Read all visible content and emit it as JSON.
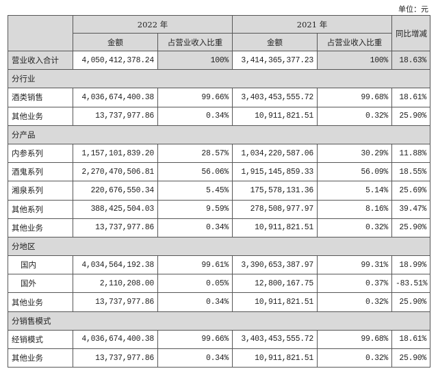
{
  "unit": "单位：元",
  "header": {
    "year_2022": "2022 年",
    "year_2021": "2021 年",
    "amount": "金额",
    "ratio": "占营业收入比重",
    "yoy": "同比增减"
  },
  "rows": [
    {
      "type": "total",
      "label": "营业收入合计",
      "a22": "4,050,412,378.24",
      "r22": "100%",
      "a21": "3,414,365,377.23",
      "r21": "100%",
      "yoy": "18.63%"
    },
    {
      "type": "section",
      "label": "分行业"
    },
    {
      "type": "data",
      "label": "酒类销售",
      "a22": "4,036,674,400.38",
      "r22": "99.66%",
      "a21": "3,403,453,555.72",
      "r21": "99.68%",
      "yoy": "18.61%"
    },
    {
      "type": "data",
      "label": "其他业务",
      "a22": "13,737,977.86",
      "r22": "0.34%",
      "a21": "10,911,821.51",
      "r21": "0.32%",
      "yoy": "25.90%"
    },
    {
      "type": "section",
      "label": "分产品"
    },
    {
      "type": "data",
      "label": "内参系列",
      "a22": "1,157,101,839.20",
      "r22": "28.57%",
      "a21": "1,034,220,587.06",
      "r21": "30.29%",
      "yoy": "11.88%"
    },
    {
      "type": "data",
      "label": "酒鬼系列",
      "a22": "2,270,470,506.81",
      "r22": "56.06%",
      "a21": "1,915,145,859.33",
      "r21": "56.09%",
      "yoy": "18.55%"
    },
    {
      "type": "data",
      "label": "湘泉系列",
      "a22": "220,676,550.34",
      "r22": "5.45%",
      "a21": "175,578,131.36",
      "r21": "5.14%",
      "yoy": "25.69%"
    },
    {
      "type": "data",
      "label": "其他系列",
      "a22": "388,425,504.03",
      "r22": "9.59%",
      "a21": "278,508,977.97",
      "r21": "8.16%",
      "yoy": "39.47%"
    },
    {
      "type": "data",
      "label": "其他业务",
      "a22": "13,737,977.86",
      "r22": "0.34%",
      "a21": "10,911,821.51",
      "r21": "0.32%",
      "yoy": "25.90%"
    },
    {
      "type": "section",
      "label": "分地区"
    },
    {
      "type": "data",
      "indent": true,
      "label": "国内",
      "a22": "4,034,564,192.38",
      "r22": "99.61%",
      "a21": "3,390,653,387.97",
      "r21": "99.31%",
      "yoy": "18.99%"
    },
    {
      "type": "data",
      "indent": true,
      "label": "国外",
      "a22": "2,110,208.00",
      "r22": "0.05%",
      "a21": "12,800,167.75",
      "r21": "0.37%",
      "yoy": "-83.51%"
    },
    {
      "type": "data",
      "label": "其他业务",
      "a22": "13,737,977.86",
      "r22": "0.34%",
      "a21": "10,911,821.51",
      "r21": "0.32%",
      "yoy": "25.90%"
    },
    {
      "type": "section",
      "label": "分销售模式"
    },
    {
      "type": "data",
      "label": "经销模式",
      "a22": "4,036,674,400.38",
      "r22": "99.66%",
      "a21": "3,403,453,555.72",
      "r21": "99.68%",
      "yoy": "18.61%"
    },
    {
      "type": "data",
      "label": "其他业务",
      "a22": "13,737,977.86",
      "r22": "0.34%",
      "a21": "10,911,821.51",
      "r21": "0.32%",
      "yoy": "25.90%"
    }
  ]
}
